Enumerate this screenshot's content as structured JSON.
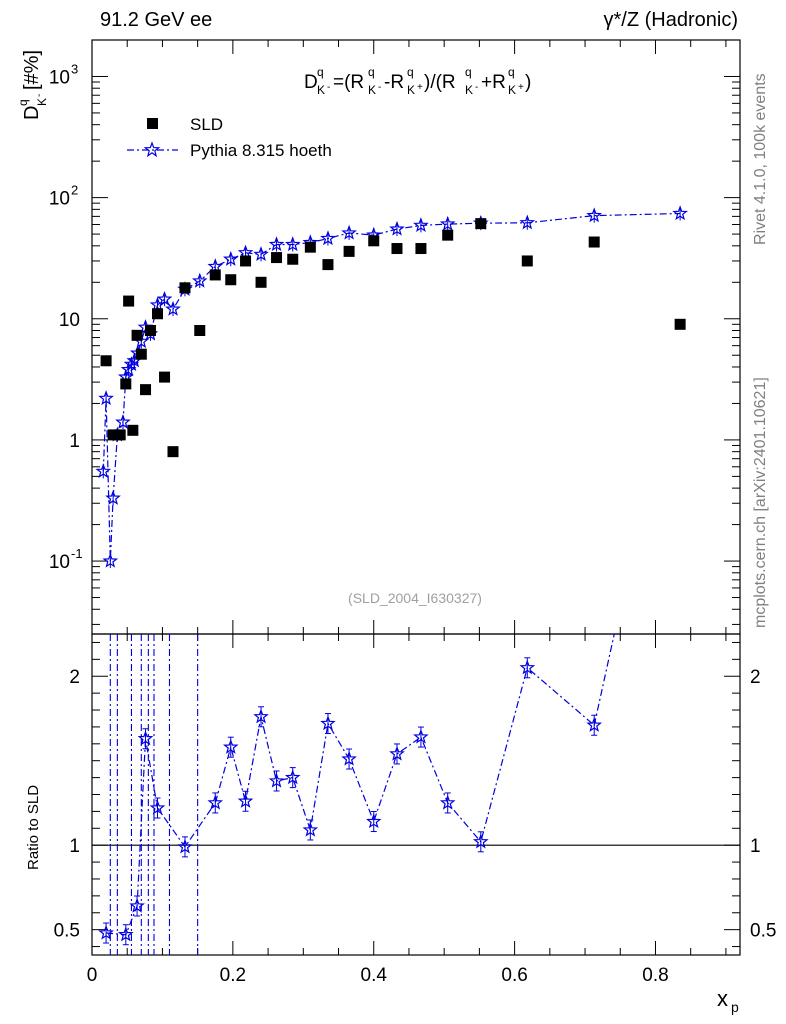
{
  "header": {
    "left": "91.2 GeV ee",
    "right": "γ*/Z (Hadronic)"
  },
  "side_labels": {
    "rivet": "Rivet 4.1.0,  100k events",
    "mcplots": "mcplots.cern.ch [arXiv:2401.10621]"
  },
  "chart_data": [
    {
      "type": "scatter",
      "panel": "main",
      "title": "D_K^q = (R_K-^q - R_K+^q)/(R_K-^q + R_K+^q)",
      "xlabel": "x_p",
      "ylabel": "D_K^q [#%]",
      "yscale": "log",
      "xlim": [
        0,
        0.92
      ],
      "ylim": [
        0.025,
        2000
      ],
      "analysis_id": "(SLD_2004_I630327)",
      "legend": [
        "SLD",
        "Pythia 8.315 hoeth"
      ],
      "x_ticks": [
        "0",
        "0.2",
        "0.4",
        "0.6",
        "0.8"
      ],
      "y_ticks": [
        "10^-1",
        "1",
        "10",
        "10^2",
        "10^3"
      ],
      "series": [
        {
          "name": "SLD",
          "marker": "square",
          "color": "#000000",
          "x": [
            0.02,
            0.03,
            0.04,
            0.048,
            0.052,
            0.058,
            0.064,
            0.07,
            0.076,
            0.083,
            0.093,
            0.103,
            0.115,
            0.132,
            0.153,
            0.175,
            0.197,
            0.218,
            0.24,
            0.262,
            0.285,
            0.31,
            0.335,
            0.365,
            0.4,
            0.433,
            0.467,
            0.505,
            0.552,
            0.618,
            0.713,
            0.835
          ],
          "y": [
            4.5,
            1.1,
            1.1,
            2.9,
            14.0,
            1.2,
            7.3,
            5.1,
            2.6,
            8.0,
            11.0,
            3.3,
            0.8,
            18.0,
            8.0,
            23.0,
            21.0,
            30.0,
            20.0,
            32.0,
            31.0,
            39.0,
            28.0,
            36.0,
            44.0,
            38.0,
            38.0,
            49.0,
            61.0,
            30.0,
            43.0,
            9.0
          ]
        },
        {
          "name": "Pythia 8.315 hoeth",
          "marker": "star",
          "line": "dash-dot",
          "color": "#0000e0",
          "x": [
            0.016,
            0.02,
            0.026,
            0.03,
            0.036,
            0.044,
            0.048,
            0.052,
            0.056,
            0.06,
            0.065,
            0.07,
            0.076,
            0.083,
            0.093,
            0.103,
            0.115,
            0.132,
            0.153,
            0.175,
            0.197,
            0.218,
            0.24,
            0.262,
            0.285,
            0.31,
            0.335,
            0.365,
            0.4,
            0.433,
            0.467,
            0.505,
            0.552,
            0.618,
            0.713,
            0.835
          ],
          "y": [
            0.55,
            2.2,
            0.1,
            0.33,
            1.1,
            1.4,
            3.3,
            3.8,
            4.2,
            4.5,
            5.2,
            6.5,
            8.5,
            7.5,
            13.0,
            14.5,
            12.0,
            17.5,
            20.5,
            27.0,
            31.0,
            35.0,
            34.0,
            41.0,
            41.0,
            42.5,
            46.0,
            51.0,
            49.0,
            55.0,
            59.0,
            60.5,
            61.5,
            62.0,
            71.0,
            74.0
          ]
        }
      ]
    },
    {
      "type": "line",
      "panel": "ratio",
      "ylabel": "Ratio to SLD",
      "xlabel": "x_p",
      "xlim": [
        0,
        0.92
      ],
      "ylim": [
        0.35,
        2.25
      ],
      "y_ticks": [
        "0.5",
        "1",
        "2"
      ],
      "x_ticks": [
        "0",
        "0.2",
        "0.4",
        "0.6",
        "0.8"
      ],
      "reference_line": 1,
      "series": [
        {
          "name": "Pythia 8.315 hoeth / SLD",
          "color": "#0000e0",
          "x": [
            0.02,
            0.048,
            0.064,
            0.076,
            0.093,
            0.132,
            0.175,
            0.197,
            0.218,
            0.24,
            0.262,
            0.285,
            0.31,
            0.335,
            0.365,
            0.4,
            0.433,
            0.467,
            0.505,
            0.552,
            0.618,
            0.713
          ],
          "y": [
            0.48,
            0.47,
            0.64,
            1.63,
            1.22,
            0.99,
            1.25,
            1.58,
            1.26,
            1.76,
            1.38,
            1.4,
            1.09,
            1.72,
            1.51,
            1.14,
            1.54,
            1.64,
            1.25,
            1.02,
            2.05,
            1.71
          ]
        }
      ]
    }
  ]
}
